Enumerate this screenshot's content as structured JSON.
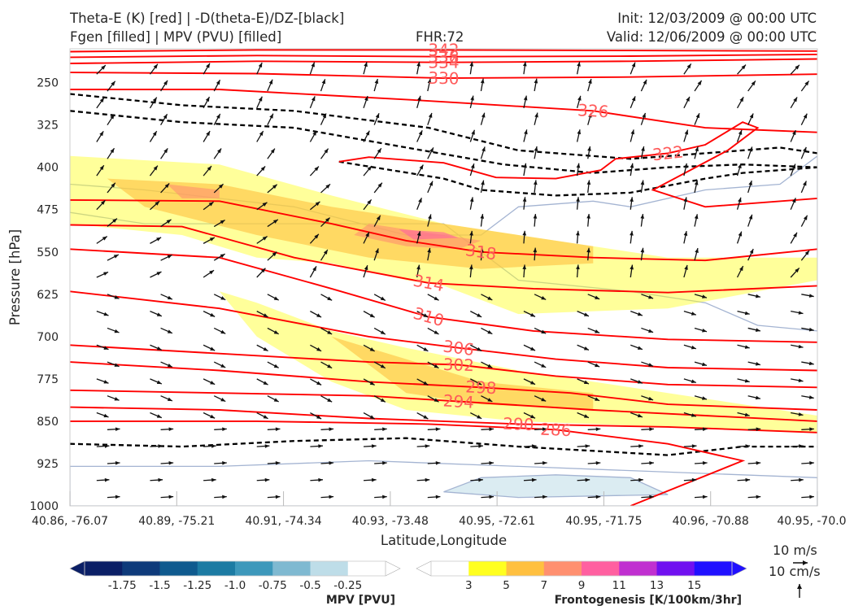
{
  "header": {
    "title_left_1": "Theta-E (K) [red] | -D(theta-E)/DZ-[black]",
    "title_left_2": "Fgen [filled] | MPV (PVU) [filled]",
    "fhr": "FHR:72",
    "init": "Init: 12/03/2009 @ 00:00 UTC",
    "valid": "Valid: 12/06/2009 @ 00:00 UTC"
  },
  "colors": {
    "theta_e": "#ff0000",
    "dthetae_dz": "#000000",
    "mpv_outline": "#a4b4d2",
    "wind_arrow": "#111111",
    "mpv_scale": [
      "#0b1f66",
      "#0e3a7a",
      "#0f5a8e",
      "#1c7ba3",
      "#3d98bb",
      "#7fb9d1",
      "#bedde8",
      "#ffffff"
    ],
    "fgen_scale": [
      "#ffffff",
      "#ffff20",
      "#ffc040",
      "#ff9070",
      "#ff60a0",
      "#c030d0",
      "#7010f0",
      "#2010ff"
    ]
  },
  "chart_data": {
    "type": "cross-section",
    "xlabel": "Latitude,Longitude",
    "ylabel": "Pressure [hPa]",
    "x_ticks": [
      "40.86, -76.07",
      "40.89, -75.21",
      "40.91, -74.34",
      "40.93, -73.48",
      "40.95, -72.61",
      "40.95, -71.75",
      "40.96, -70.88",
      "40.95, -70.0"
    ],
    "y_ticks": [
      250,
      325,
      400,
      475,
      550,
      625,
      700,
      775,
      850,
      925,
      1000
    ],
    "ylim": [
      1000,
      190
    ],
    "y_scale": "linear, inverted",
    "theta_e_contours": [
      {
        "value": 342,
        "label": "342",
        "points": [
          [
            0,
            195
          ],
          [
            0.25,
            192
          ],
          [
            0.5,
            192
          ],
          [
            0.75,
            193
          ],
          [
            1,
            194
          ]
        ]
      },
      {
        "value": 338,
        "label": "338",
        "points": [
          [
            0,
            205
          ],
          [
            0.25,
            202
          ],
          [
            0.5,
            204
          ],
          [
            0.75,
            203
          ],
          [
            1,
            200
          ]
        ]
      },
      {
        "value": 334,
        "label": "334",
        "points": [
          [
            0,
            216
          ],
          [
            0.25,
            212
          ],
          [
            0.5,
            214
          ],
          [
            0.75,
            212
          ],
          [
            1,
            208
          ]
        ]
      },
      {
        "value": 330,
        "label": "330",
        "points": [
          [
            0,
            232
          ],
          [
            0.25,
            234
          ],
          [
            0.5,
            242
          ],
          [
            0.75,
            240
          ],
          [
            1,
            235
          ]
        ]
      },
      {
        "value": 326,
        "label": "326",
        "points": [
          [
            0,
            262
          ],
          [
            0.2,
            262
          ],
          [
            0.45,
            280
          ],
          [
            0.7,
            300
          ],
          [
            0.85,
            330
          ],
          [
            1,
            338
          ]
        ]
      },
      {
        "value": 322,
        "label": "322",
        "points": [
          [
            0.36,
            390
          ],
          [
            0.4,
            382
          ],
          [
            0.5,
            392
          ],
          [
            0.57,
            418
          ],
          [
            0.65,
            420
          ],
          [
            0.71,
            405
          ],
          [
            0.73,
            385
          ],
          [
            0.8,
            375
          ],
          [
            0.85,
            360
          ],
          [
            0.9,
            320
          ],
          [
            0.92,
            330
          ],
          [
            0.88,
            370
          ],
          [
            0.78,
            440
          ],
          [
            0.85,
            470
          ],
          [
            1,
            455
          ]
        ]
      },
      {
        "value": 318,
        "label": "318",
        "points": [
          [
            0,
            458
          ],
          [
            0.2,
            460
          ],
          [
            0.35,
            500
          ],
          [
            0.45,
            530
          ],
          [
            0.55,
            550
          ],
          [
            0.7,
            560
          ],
          [
            0.85,
            565
          ],
          [
            1,
            545
          ]
        ]
      },
      {
        "value": 314,
        "label": "314",
        "points": [
          [
            0,
            502
          ],
          [
            0.15,
            505
          ],
          [
            0.3,
            560
          ],
          [
            0.48,
            605
          ],
          [
            0.62,
            615
          ],
          [
            0.8,
            622
          ],
          [
            1,
            610
          ]
        ]
      },
      {
        "value": 310,
        "label": "310",
        "points": [
          [
            0,
            545
          ],
          [
            0.2,
            560
          ],
          [
            0.35,
            615
          ],
          [
            0.48,
            665
          ],
          [
            0.62,
            690
          ],
          [
            0.8,
            705
          ],
          [
            1,
            710
          ]
        ]
      },
      {
        "value": 306,
        "label": "306",
        "points": [
          [
            0,
            620
          ],
          [
            0.2,
            650
          ],
          [
            0.4,
            700
          ],
          [
            0.52,
            720
          ],
          [
            0.65,
            740
          ],
          [
            0.8,
            755
          ],
          [
            1,
            760
          ]
        ]
      },
      {
        "value": 302,
        "label": "302",
        "points": [
          [
            0,
            715
          ],
          [
            0.2,
            730
          ],
          [
            0.4,
            745
          ],
          [
            0.52,
            750
          ],
          [
            0.65,
            770
          ],
          [
            0.8,
            785
          ],
          [
            1,
            790
          ]
        ]
      },
      {
        "value": 298,
        "label": "298",
        "points": [
          [
            0,
            745
          ],
          [
            0.2,
            760
          ],
          [
            0.4,
            780
          ],
          [
            0.55,
            790
          ],
          [
            0.67,
            800
          ],
          [
            0.8,
            820
          ],
          [
            1,
            830
          ]
        ]
      },
      {
        "value": 294,
        "label": "294",
        "points": [
          [
            0,
            795
          ],
          [
            0.2,
            800
          ],
          [
            0.4,
            805
          ],
          [
            0.52,
            815
          ],
          [
            0.7,
            830
          ],
          [
            0.85,
            840
          ],
          [
            1,
            850
          ]
        ]
      },
      {
        "value": 290,
        "label": "290",
        "points": [
          [
            0,
            825
          ],
          [
            0.2,
            830
          ],
          [
            0.4,
            845
          ],
          [
            0.6,
            855
          ],
          [
            0.8,
            860
          ],
          [
            1,
            870
          ]
        ]
      },
      {
        "value": 286,
        "label": "286",
        "points": [
          [
            0,
            850
          ],
          [
            0.25,
            850
          ],
          [
            0.48,
            855
          ],
          [
            0.65,
            865
          ],
          [
            0.8,
            890
          ],
          [
            0.9,
            920
          ],
          [
            0.75,
            1000
          ]
        ]
      }
    ],
    "dthetae_dz_contours": [
      {
        "points": [
          [
            0,
            270
          ],
          [
            0.15,
            290
          ],
          [
            0.3,
            300
          ],
          [
            0.48,
            330
          ],
          [
            0.6,
            370
          ],
          [
            0.75,
            385
          ],
          [
            0.85,
            375
          ],
          [
            0.95,
            365
          ],
          [
            1,
            375
          ]
        ]
      },
      {
        "points": [
          [
            0,
            300
          ],
          [
            0.15,
            320
          ],
          [
            0.3,
            330
          ],
          [
            0.45,
            365
          ],
          [
            0.58,
            395
          ],
          [
            0.7,
            410
          ],
          [
            0.8,
            400
          ],
          [
            0.9,
            395
          ],
          [
            1,
            400
          ]
        ]
      },
      {
        "points": [
          [
            0.36,
            390
          ],
          [
            0.5,
            420
          ],
          [
            0.55,
            440
          ],
          [
            0.65,
            450
          ],
          [
            0.75,
            445
          ],
          [
            0.85,
            420
          ],
          [
            0.9,
            410
          ],
          [
            1,
            400
          ]
        ]
      },
      {
        "points": [
          [
            0,
            890
          ],
          [
            0.15,
            895
          ],
          [
            0.3,
            885
          ],
          [
            0.45,
            880
          ],
          [
            0.6,
            895
          ],
          [
            0.8,
            910
          ],
          [
            0.9,
            895
          ],
          [
            1,
            895
          ]
        ]
      }
    ],
    "mpv_filled_regions_pvu": [
      {
        "level": -0.25,
        "points": [
          [
            0,
            430
          ],
          [
            0.1,
            440
          ],
          [
            0.3,
            470
          ],
          [
            0.45,
            520
          ],
          [
            0.55,
            520
          ],
          [
            0.6,
            470
          ],
          [
            0.7,
            460
          ],
          [
            0.75,
            470
          ],
          [
            0.85,
            440
          ],
          [
            0.95,
            430
          ],
          [
            1,
            380
          ],
          [
            1,
            690
          ],
          [
            0.92,
            680
          ],
          [
            0.85,
            640
          ],
          [
            0.75,
            620
          ],
          [
            0.6,
            600
          ],
          [
            0.5,
            500
          ],
          [
            0.3,
            500
          ],
          [
            0.1,
            500
          ],
          [
            0,
            480
          ]
        ]
      },
      {
        "level": -0.25,
        "points": [
          [
            0,
            930
          ],
          [
            0.2,
            930
          ],
          [
            0.4,
            920
          ],
          [
            0.6,
            930
          ],
          [
            0.8,
            940
          ],
          [
            1,
            950
          ],
          [
            1,
            1000
          ],
          [
            0,
            1000
          ]
        ]
      },
      {
        "level": -0.5,
        "points": [
          [
            0.55,
            950
          ],
          [
            0.65,
            945
          ],
          [
            0.75,
            950
          ],
          [
            0.8,
            980
          ],
          [
            0.6,
            985
          ],
          [
            0.5,
            975
          ]
        ]
      }
    ],
    "fgen_filled_regions": [
      {
        "level": 3,
        "points": [
          [
            0,
            380
          ],
          [
            0.2,
            395
          ],
          [
            0.35,
            450
          ],
          [
            0.5,
            500
          ],
          [
            0.6,
            520
          ],
          [
            0.8,
            560
          ],
          [
            1,
            560
          ],
          [
            1,
            600
          ],
          [
            0.8,
            650
          ],
          [
            0.6,
            660
          ],
          [
            0.5,
            610
          ],
          [
            0.45,
            600
          ],
          [
            0.35,
            570
          ],
          [
            0.25,
            560
          ],
          [
            0.15,
            520
          ],
          [
            0,
            500
          ]
        ]
      },
      {
        "level": 3,
        "points": [
          [
            0.2,
            620
          ],
          [
            0.25,
            700
          ],
          [
            0.35,
            780
          ],
          [
            0.45,
            830
          ],
          [
            0.6,
            850
          ],
          [
            0.8,
            860
          ],
          [
            1,
            870
          ],
          [
            1,
            840
          ],
          [
            0.8,
            800
          ],
          [
            0.6,
            760
          ],
          [
            0.45,
            720
          ],
          [
            0.35,
            690
          ],
          [
            0.25,
            640
          ]
        ]
      },
      {
        "level": 5,
        "points": [
          [
            0.05,
            420
          ],
          [
            0.2,
            430
          ],
          [
            0.35,
            470
          ],
          [
            0.5,
            500
          ],
          [
            0.6,
            520
          ],
          [
            0.7,
            540
          ],
          [
            0.7,
            570
          ],
          [
            0.55,
            580
          ],
          [
            0.4,
            560
          ],
          [
            0.25,
            520
          ],
          [
            0.1,
            470
          ]
        ]
      },
      {
        "level": 5,
        "points": [
          [
            0.35,
            700
          ],
          [
            0.45,
            740
          ],
          [
            0.55,
            780
          ],
          [
            0.7,
            800
          ],
          [
            0.7,
            830
          ],
          [
            0.55,
            820
          ],
          [
            0.45,
            800
          ]
        ]
      },
      {
        "level": 7,
        "points": [
          [
            0.13,
            430
          ],
          [
            0.2,
            440
          ],
          [
            0.2,
            455
          ],
          [
            0.15,
            455
          ]
        ]
      },
      {
        "level": 7,
        "points": [
          [
            0.4,
            500
          ],
          [
            0.5,
            520
          ],
          [
            0.55,
            530
          ],
          [
            0.52,
            545
          ],
          [
            0.45,
            540
          ],
          [
            0.38,
            520
          ]
        ]
      },
      {
        "level": 9,
        "points": [
          [
            0.44,
            510
          ],
          [
            0.5,
            515
          ],
          [
            0.52,
            525
          ],
          [
            0.46,
            528
          ]
        ]
      }
    ],
    "winds": {
      "units": "cm/s (vertical), m/s (horizontal)",
      "reference_horizontal": "10 m/s",
      "reference_vertical": "10 cm/s"
    },
    "colorbars": [
      {
        "title": "MPV [PVU]",
        "ticks": [
          "-1.75",
          "-1.5",
          "-1.25",
          "-1.0",
          "-0.75",
          "-0.5",
          "-0.25"
        ]
      },
      {
        "title": "Frontogenesis [K/100km/3hr]",
        "ticks": [
          "3",
          "5",
          "7",
          "9",
          "11",
          "13",
          "15"
        ]
      }
    ]
  }
}
